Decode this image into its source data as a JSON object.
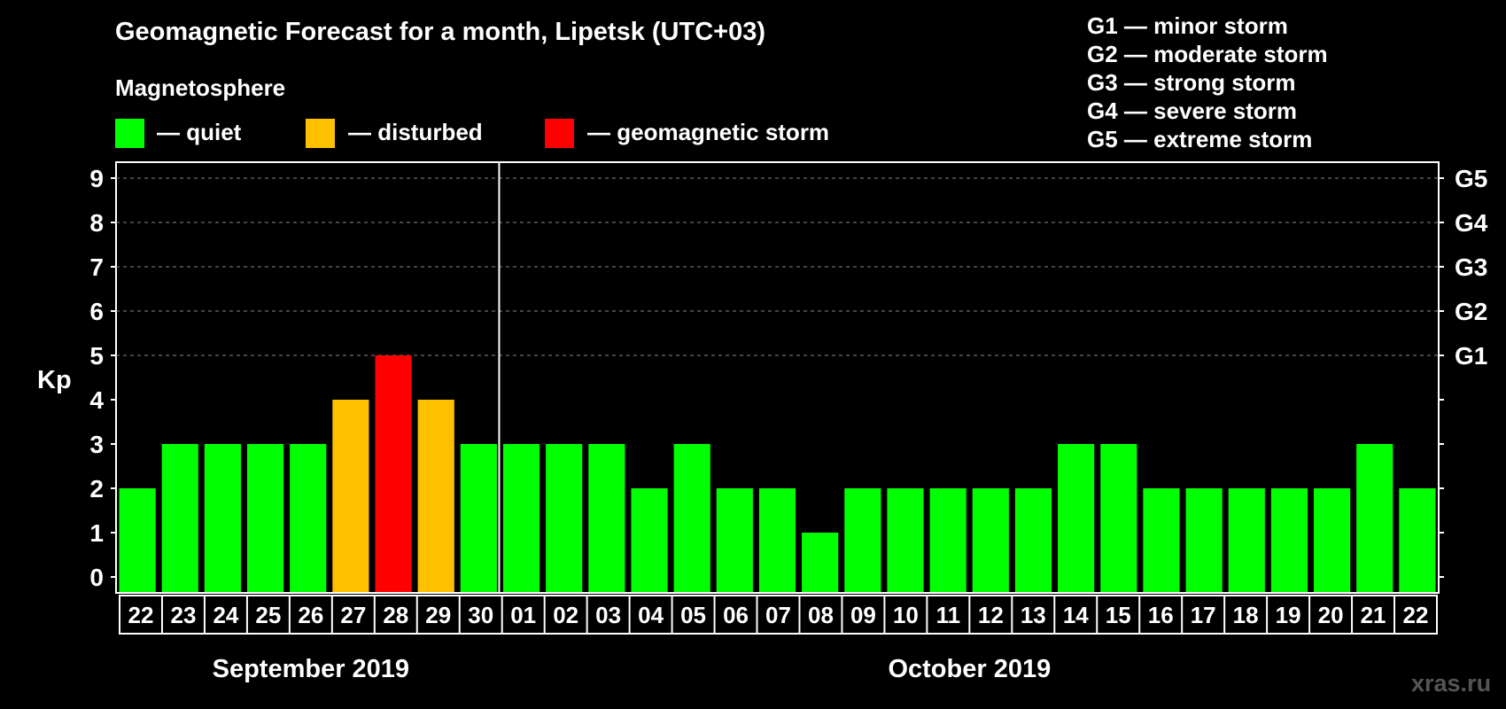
{
  "title": "Geomagnetic Forecast for a month, Lipetsk (UTC+03)",
  "legend": {
    "heading": "Magnetosphere",
    "items": [
      {
        "label": "— quiet",
        "color": "#00ff00"
      },
      {
        "label": "— disturbed",
        "color": "#ffc000"
      },
      {
        "label": "— geomagnetic storm",
        "color": "#ff0000"
      }
    ]
  },
  "storm_levels": [
    "G1 — minor storm",
    "G2 — moderate storm",
    "G3 — strong storm",
    "G4 — severe storm",
    "G5 — extreme storm"
  ],
  "watermark": "xras.ru",
  "chart_data": {
    "type": "bar",
    "title": "Geomagnetic Forecast for a month, Lipetsk (UTC+03)",
    "ylabel": "Kp",
    "ylim": [
      0,
      9
    ],
    "yticks": [
      0,
      1,
      2,
      3,
      4,
      5,
      6,
      7,
      8,
      9
    ],
    "right_axis_labels": [
      {
        "value": 5,
        "label": "G1"
      },
      {
        "value": 6,
        "label": "G2"
      },
      {
        "value": 7,
        "label": "G3"
      },
      {
        "value": 8,
        "label": "G4"
      },
      {
        "value": 9,
        "label": "G5"
      }
    ],
    "grid_dashed_at": [
      5,
      6,
      7,
      8,
      9
    ],
    "categories": [
      "22",
      "23",
      "24",
      "25",
      "26",
      "27",
      "28",
      "29",
      "30",
      "01",
      "02",
      "03",
      "04",
      "05",
      "06",
      "07",
      "08",
      "09",
      "10",
      "11",
      "12",
      "13",
      "14",
      "15",
      "16",
      "17",
      "18",
      "19",
      "20",
      "21",
      "22"
    ],
    "values": [
      2,
      3,
      3,
      3,
      3,
      4,
      5,
      4,
      3,
      3,
      3,
      3,
      2,
      3,
      2,
      2,
      1,
      2,
      2,
      2,
      2,
      2,
      3,
      3,
      2,
      2,
      2,
      2,
      2,
      3,
      2
    ],
    "status": [
      "quiet",
      "quiet",
      "quiet",
      "quiet",
      "quiet",
      "disturbed",
      "storm",
      "disturbed",
      "quiet",
      "quiet",
      "quiet",
      "quiet",
      "quiet",
      "quiet",
      "quiet",
      "quiet",
      "quiet",
      "quiet",
      "quiet",
      "quiet",
      "quiet",
      "quiet",
      "quiet",
      "quiet",
      "quiet",
      "quiet",
      "quiet",
      "quiet",
      "quiet",
      "quiet",
      "quiet"
    ],
    "colors": {
      "quiet": "#00ff00",
      "disturbed": "#ffc000",
      "storm": "#ff0000"
    },
    "months": [
      {
        "label": "September 2019",
        "first_index": 0,
        "last_index": 8
      },
      {
        "label": "October 2019",
        "first_index": 9,
        "last_index": 30
      }
    ]
  }
}
